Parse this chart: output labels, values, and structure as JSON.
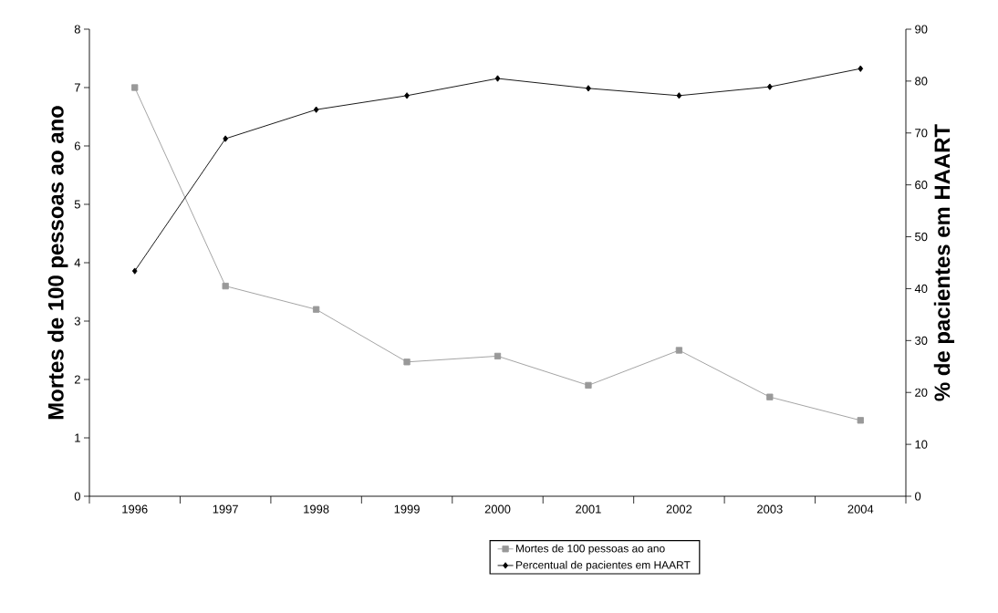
{
  "chart_data": {
    "type": "line",
    "categories": [
      "1996",
      "1997",
      "1998",
      "1999",
      "2000",
      "2001",
      "2002",
      "2003",
      "2004"
    ],
    "ylabel": "Mortes de 100 pessoas ao ano",
    "y2label": "% de pacientes em HAART",
    "ylim": [
      0,
      8
    ],
    "yticks": [
      0,
      1,
      2,
      3,
      4,
      5,
      6,
      7,
      8
    ],
    "y2lim": [
      0,
      90
    ],
    "y2ticks": [
      0,
      10,
      20,
      30,
      40,
      50,
      60,
      70,
      80,
      90
    ],
    "legend": "bottom right",
    "grid": false,
    "series": [
      {
        "name": "Mortes de 100  pessoas ao ano",
        "color": "#999999",
        "marker": "square",
        "axis": "y",
        "values": [
          7.0,
          3.6,
          3.2,
          2.3,
          2.4,
          1.9,
          2.5,
          1.7,
          1.3
        ]
      },
      {
        "name": "Percentual de pacientes em HAART",
        "color": "#000000",
        "marker": "diamond",
        "axis": "y2",
        "values": [
          43.4,
          68.9,
          74.5,
          77.2,
          80.5,
          78.6,
          77.2,
          78.9,
          82.4
        ]
      }
    ]
  }
}
